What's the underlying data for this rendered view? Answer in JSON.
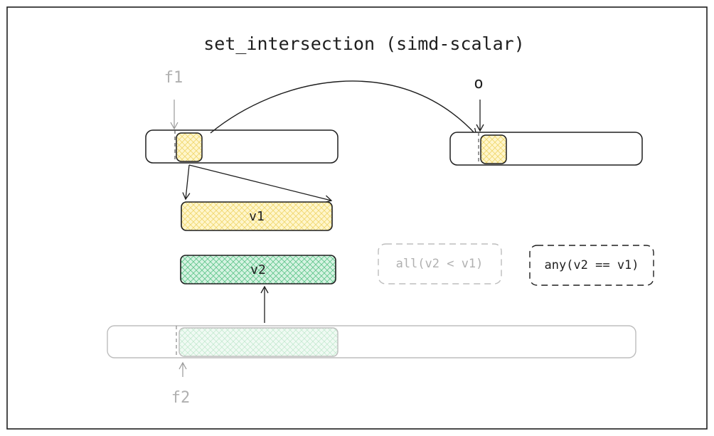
{
  "title": "set_intersection (simd-scalar)",
  "pointers": {
    "f1": "f1",
    "o": "o",
    "f2": "f2"
  },
  "vectors": {
    "v1": "v1",
    "v2": "v2"
  },
  "conditions": {
    "all": "all(v2 < v1)",
    "any": "any(v2 == v1)"
  },
  "colors": {
    "ink": "#1e1e1e",
    "faded_ink": "#b0b0b0",
    "yellow_fill": "#fff3bf",
    "yellow_hatch": "#f0d66b",
    "green_fill": "#d9f5e5",
    "green_hatch": "#5fc48a",
    "faded_green_fill": "#eef9f1"
  }
}
